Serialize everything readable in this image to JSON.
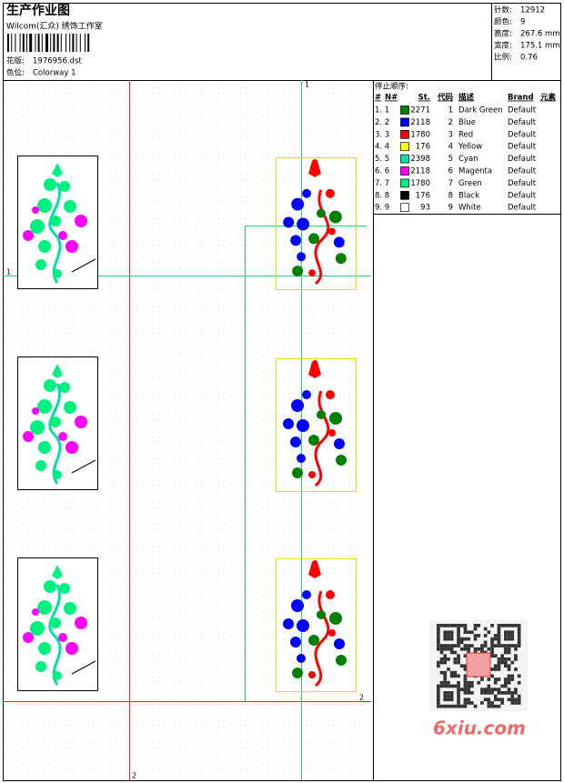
{
  "header": {
    "title": "生产作业图",
    "subtitle": "Wilcom(汇众) 绣饰工作室",
    "design_label": "花版:",
    "design": "1976956.dst",
    "colorway_label": "色位:",
    "colorway": "Colorway 1"
  },
  "info": [
    {
      "label": "针数:",
      "value": "12912"
    },
    {
      "label": "颜色:",
      "value": "9"
    },
    {
      "label": "高度:",
      "value": "267.6 mm"
    },
    {
      "label": "宽度:",
      "value": "175.1 mm"
    },
    {
      "label": "比例:",
      "value": "0.76"
    }
  ],
  "table": {
    "title": "停止顺序:",
    "columns": [
      "#",
      "N#",
      "St.",
      "代码",
      "描述",
      "Brand",
      "元素"
    ],
    "rows": [
      {
        "order": "1. 1",
        "color": "#008000",
        "stitches": 2271,
        "code": 1,
        "description": "Dark Green",
        "brand": "Default"
      },
      {
        "order": "2. 2",
        "color": "#0000ff",
        "stitches": 2118,
        "code": 2,
        "description": "Blue",
        "brand": "Default"
      },
      {
        "order": "3. 3",
        "color": "#ff0000",
        "stitches": 1780,
        "code": 3,
        "description": "Red",
        "brand": "Default"
      },
      {
        "order": "4. 4",
        "color": "#ffff00",
        "stitches": 176,
        "code": 4,
        "description": "Yellow",
        "brand": "Default"
      },
      {
        "order": "5. 5",
        "color": "#00e0a0",
        "stitches": 2398,
        "code": 5,
        "description": "Cyan",
        "brand": "Default"
      },
      {
        "order": "6. 6",
        "color": "#ff00ff",
        "stitches": 2118,
        "code": 6,
        "description": "Magenta",
        "brand": "Default"
      },
      {
        "order": "7. 7",
        "color": "#00f080",
        "stitches": 1780,
        "code": 7,
        "description": "Green",
        "brand": "Default"
      },
      {
        "order": "8. 8",
        "color": "#000000",
        "stitches": 176,
        "code": 8,
        "description": "Black",
        "brand": "Default"
      },
      {
        "order": "9. 9",
        "color": "#ffffff",
        "stitches": 93,
        "code": 9,
        "description": "White",
        "brand": "Default"
      }
    ]
  },
  "guides": {
    "green_top": "1",
    "green_left": "1",
    "red_right": "2",
    "red_bottom": "2"
  },
  "watermark": "6xiu.com"
}
